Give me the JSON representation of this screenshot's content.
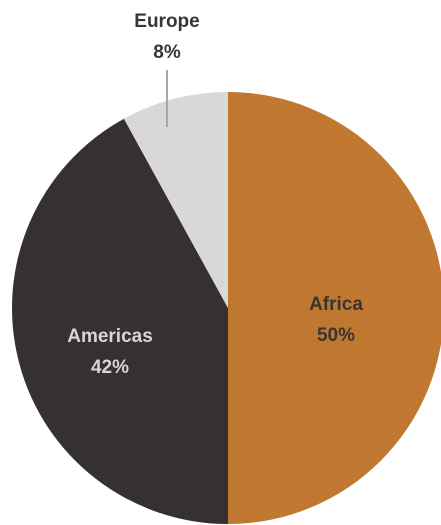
{
  "chart_data": {
    "type": "pie",
    "title": "",
    "slices": [
      {
        "label": "Africa",
        "value": 50,
        "value_label": "50%",
        "color": "#c07830",
        "text_color": "#3a3432"
      },
      {
        "label": "Americas",
        "value": 42,
        "value_label": "42%",
        "color": "#343130",
        "text_color": "#d8d6d4"
      },
      {
        "label": "Europe",
        "value": 8,
        "value_label": "8%",
        "color": "#d9d8d6",
        "text_color": "#3a3432"
      }
    ],
    "start_angle_deg": 0,
    "direction": "clockwise",
    "legend": "none",
    "label_placement": "inside, except Europe outside-top with leader line",
    "leader_line_color": "#a8a6a4"
  }
}
